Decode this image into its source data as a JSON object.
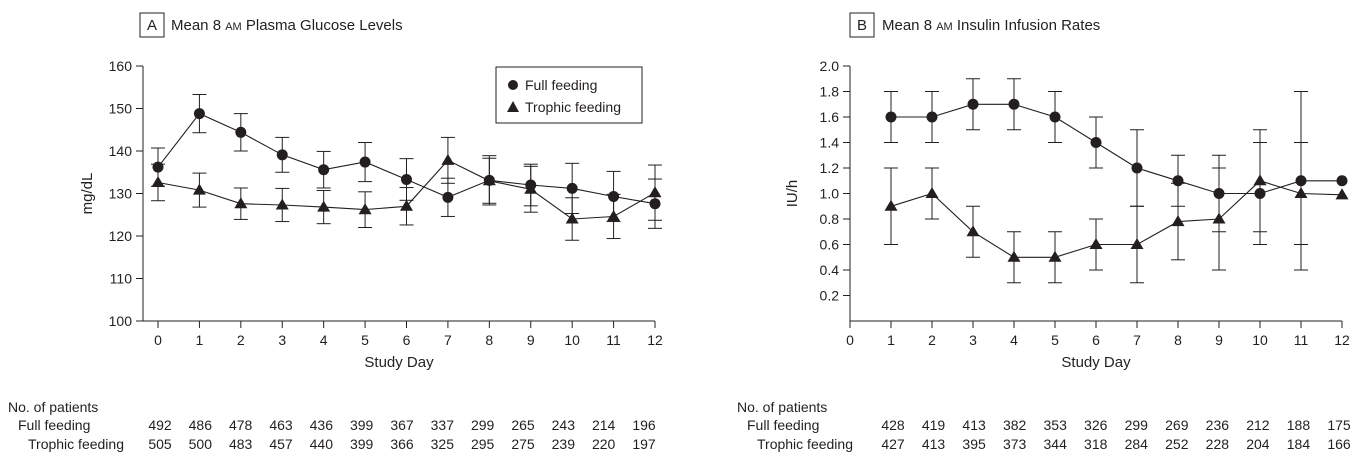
{
  "chart_data": [
    {
      "type": "line",
      "panel_letter": "A",
      "title_parts": [
        "Mean 8 ",
        "AM",
        " Plasma Glucose Levels"
      ],
      "xlabel": "Study Day",
      "ylabel": "mg/dL",
      "xlim": [
        0,
        12
      ],
      "ylim": [
        100,
        160
      ],
      "x_ticks": [
        "0",
        "1",
        "2",
        "3",
        "4",
        "5",
        "6",
        "7",
        "8",
        "9",
        "10",
        "11",
        "12"
      ],
      "y_ticks": [
        "100",
        "110",
        "120",
        "130",
        "140",
        "150",
        "160"
      ],
      "legend": {
        "placement": "top-right",
        "entries": [
          "Full feeding",
          "Trophic feeding"
        ]
      },
      "series": [
        {
          "name": "Full feeding",
          "marker": "circle",
          "x": [
            0,
            1,
            2,
            3,
            4,
            5,
            6,
            7,
            8,
            9,
            10,
            11,
            12
          ],
          "y": [
            136.2,
            148.8,
            144.4,
            139.1,
            135.6,
            137.4,
            133.3,
            129.1,
            133.1,
            132.0,
            131.2,
            129.3,
            127.6
          ],
          "err": [
            4.5,
            4.5,
            4.4,
            4.1,
            4.3,
            4.6,
            4.9,
            4.5,
            5.8,
            4.9,
            5.9,
            5.9,
            5.8
          ]
        },
        {
          "name": "Trophic feeding",
          "marker": "triangle",
          "x": [
            0,
            1,
            2,
            3,
            4,
            5,
            6,
            7,
            8,
            9,
            10,
            11,
            12
          ],
          "y": [
            132.6,
            130.8,
            127.6,
            127.3,
            126.8,
            126.2,
            127.0,
            137.8,
            133.0,
            131.0,
            124.0,
            124.6,
            130.2
          ],
          "err": [
            4.3,
            4.0,
            3.7,
            3.9,
            3.9,
            4.2,
            4.4,
            5.4,
            5.3,
            5.4,
            5.0,
            5.2,
            6.5
          ]
        }
      ],
      "patients": {
        "header": "No. of patients",
        "rows": [
          {
            "label": "Full feeding",
            "values": [
              "492",
              "486",
              "478",
              "463",
              "436",
              "399",
              "367",
              "337",
              "299",
              "265",
              "243",
              "214",
              "196"
            ]
          },
          {
            "label": "Trophic feeding",
            "values": [
              "505",
              "500",
              "483",
              "457",
              "440",
              "399",
              "366",
              "325",
              "295",
              "275",
              "239",
              "220",
              "197"
            ]
          }
        ]
      }
    },
    {
      "type": "line",
      "panel_letter": "B",
      "title_parts": [
        "Mean 8 ",
        "AM",
        " Insulin Infusion Rates"
      ],
      "xlabel": "Study Day",
      "ylabel": "IU/h",
      "xlim": [
        0,
        12
      ],
      "ylim": [
        0,
        2.0
      ],
      "x_ticks": [
        "0",
        "1",
        "2",
        "3",
        "4",
        "5",
        "6",
        "7",
        "8",
        "9",
        "10",
        "11",
        "12"
      ],
      "y_ticks": [
        "0.2",
        "0.4",
        "0.6",
        "0.8",
        "1.0",
        "1.2",
        "1.4",
        "1.6",
        "1.8",
        "2.0"
      ],
      "series": [
        {
          "name": "Full feeding",
          "marker": "circle",
          "x": [
            1,
            2,
            3,
            4,
            5,
            6,
            7,
            8,
            9,
            10,
            11,
            12
          ],
          "y": [
            1.6,
            1.6,
            1.7,
            1.7,
            1.6,
            1.4,
            1.2,
            1.1,
            1.0,
            1.0,
            1.1,
            1.1
          ],
          "err": [
            0.2,
            0.2,
            0.2,
            0.2,
            0.2,
            0.2,
            0.3,
            0.2,
            0.3,
            0.4,
            0.7,
            0
          ]
        },
        {
          "name": "Trophic feeding",
          "marker": "triangle",
          "x": [
            1,
            2,
            3,
            4,
            5,
            6,
            7,
            8,
            9,
            10,
            11,
            12
          ],
          "y": [
            0.9,
            1.0,
            0.7,
            0.5,
            0.5,
            0.6,
            0.6,
            0.78,
            0.8,
            1.1,
            1.0,
            0.99
          ],
          "err": [
            0.3,
            0.2,
            0.2,
            0.2,
            0.2,
            0.2,
            0.3,
            0.3,
            0.4,
            0.4,
            0.4,
            0
          ]
        }
      ],
      "patients": {
        "header": "No. of patients",
        "rows": [
          {
            "label": "Full feeding",
            "values": [
              "428",
              "419",
              "413",
              "382",
              "353",
              "326",
              "299",
              "269",
              "236",
              "212",
              "188",
              "175"
            ]
          },
          {
            "label": "Trophic feeding",
            "values": [
              "427",
              "413",
              "395",
              "373",
              "344",
              "318",
              "284",
              "252",
              "228",
              "204",
              "184",
              "166"
            ]
          }
        ]
      }
    }
  ]
}
